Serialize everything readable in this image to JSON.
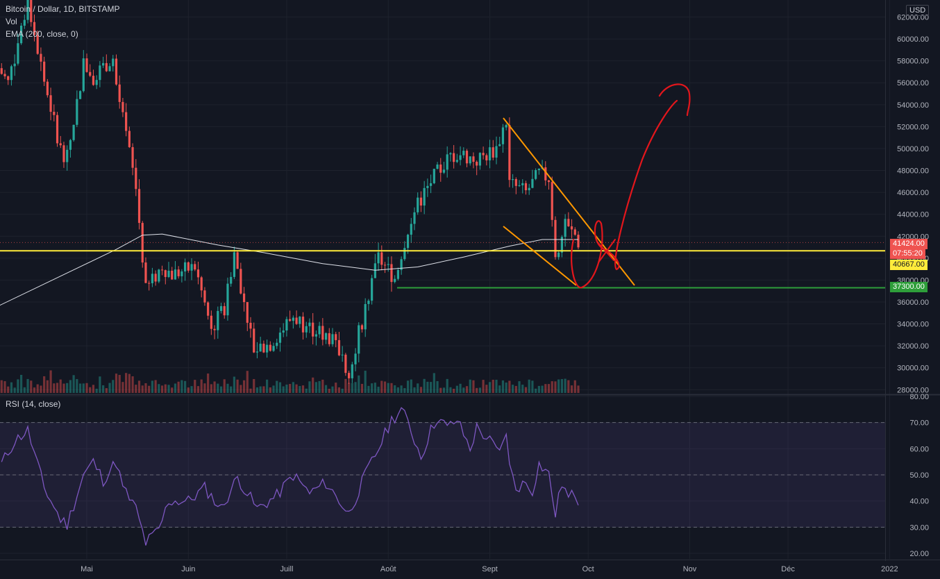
{
  "header": {
    "symbol_line": "Bitcoin / Dollar, 1D, BITSTAMP",
    "vol_label": "Vol",
    "ema_label": "EMA (200, close, 0)",
    "rsi_label": "RSI (14, close)",
    "currency": "USD"
  },
  "price_tags": {
    "last": "41424.00",
    "countdown": "07:55:20",
    "yellow_level": "40667.00",
    "green_level": "37300.00"
  },
  "colors": {
    "background": "#131722",
    "up": "#26a69a",
    "down": "#ef5350",
    "ema": "#e0e3eb",
    "rsi": "#7e57c2",
    "yellow_line": "#ffeb3b",
    "green_line": "#2e9e3a",
    "channel": "#ff9800",
    "drawing": "#e3161c"
  },
  "chart_data": [
    {
      "type": "candlestick",
      "title": "Bitcoin / Dollar, 1D, BITSTAMP",
      "ylabel": "USD",
      "x_ticks": [
        "Mai",
        "Juin",
        "Juill",
        "Août",
        "Sept",
        "Oct",
        "Nov",
        "Déc",
        "2022"
      ],
      "y_ticks": [
        "28000.00",
        "30000.00",
        "32000.00",
        "34000.00",
        "36000.00",
        "38000.00",
        "40000.00",
        "42000.00",
        "44000.00",
        "46000.00",
        "48000.00",
        "50000.00",
        "52000.00",
        "54000.00",
        "56000.00",
        "58000.00",
        "60000.00",
        "62000.00"
      ],
      "ylim": [
        27700,
        63300
      ],
      "close_path": [
        {
          "date": "2021-04-01",
          "close": 58700
        },
        {
          "date": "2021-04-07",
          "close": 56000
        },
        {
          "date": "2021-04-13",
          "close": 63400
        },
        {
          "date": "2021-04-18",
          "close": 56200
        },
        {
          "date": "2021-04-23",
          "close": 50000
        },
        {
          "date": "2021-04-25",
          "close": 49100
        },
        {
          "date": "2021-04-30",
          "close": 57700
        },
        {
          "date": "2021-05-03",
          "close": 56600
        },
        {
          "date": "2021-05-09",
          "close": 58300
        },
        {
          "date": "2021-05-10",
          "close": 55800
        },
        {
          "date": "2021-05-14",
          "close": 49600
        },
        {
          "date": "2021-05-16",
          "close": 46400
        },
        {
          "date": "2021-05-19",
          "close": 37000
        },
        {
          "date": "2021-05-24",
          "close": 39300
        },
        {
          "date": "2021-05-27",
          "close": 38500
        },
        {
          "date": "2021-06-03",
          "close": 39200
        },
        {
          "date": "2021-06-08",
          "close": 33500
        },
        {
          "date": "2021-06-12",
          "close": 35500
        },
        {
          "date": "2021-06-15",
          "close": 40500
        },
        {
          "date": "2021-06-21",
          "close": 31700
        },
        {
          "date": "2021-06-26",
          "close": 32200
        },
        {
          "date": "2021-07-03",
          "close": 34700
        },
        {
          "date": "2021-07-07",
          "close": 33800
        },
        {
          "date": "2021-07-14",
          "close": 32800
        },
        {
          "date": "2021-07-20",
          "close": 29800
        },
        {
          "date": "2021-07-25",
          "close": 35400
        },
        {
          "date": "2021-07-29",
          "close": 40000
        },
        {
          "date": "2021-08-03",
          "close": 38200
        },
        {
          "date": "2021-08-08",
          "close": 43800
        },
        {
          "date": "2021-08-14",
          "close": 47000
        },
        {
          "date": "2021-08-20",
          "close": 49300
        },
        {
          "date": "2021-08-23",
          "close": 49500
        },
        {
          "date": "2021-08-28",
          "close": 48900
        },
        {
          "date": "2021-09-03",
          "close": 50000
        },
        {
          "date": "2021-09-06",
          "close": 52700
        },
        {
          "date": "2021-09-07",
          "close": 46800
        },
        {
          "date": "2021-09-12",
          "close": 46000
        },
        {
          "date": "2021-09-16",
          "close": 47700
        },
        {
          "date": "2021-09-19",
          "close": 47300
        },
        {
          "date": "2021-09-21",
          "close": 40500
        },
        {
          "date": "2021-09-24",
          "close": 42800
        },
        {
          "date": "2021-09-27",
          "close": 42100
        },
        {
          "date": "2021-09-28",
          "close": 41424
        }
      ],
      "ema_200_path": [
        {
          "date": "2021-04-01",
          "value": 35200
        },
        {
          "date": "2021-05-10",
          "value": 40800
        },
        {
          "date": "2021-05-18",
          "value": 42100
        },
        {
          "date": "2021-05-24",
          "value": 42200
        },
        {
          "date": "2021-06-10",
          "value": 41200
        },
        {
          "date": "2021-06-24",
          "value": 40500
        },
        {
          "date": "2021-07-12",
          "value": 39500
        },
        {
          "date": "2021-07-28",
          "value": 38900
        },
        {
          "date": "2021-08-10",
          "value": 39200
        },
        {
          "date": "2021-08-24",
          "value": 40100
        },
        {
          "date": "2021-09-07",
          "value": 41100
        },
        {
          "date": "2021-09-17",
          "value": 41700
        },
        {
          "date": "2021-09-28",
          "value": 41700
        }
      ],
      "levels": [
        {
          "value": 40667,
          "color": "yellow"
        },
        {
          "value": 37300,
          "color": "green"
        }
      ]
    },
    {
      "type": "line",
      "title": "RSI (14, close)",
      "y_ticks": [
        "20.00",
        "30.00",
        "40.00",
        "50.00",
        "60.00",
        "70.00",
        "80.00"
      ],
      "ylim": [
        20,
        80
      ],
      "bands": [
        30,
        50,
        70
      ],
      "points": [
        {
          "date": "2021-04-01",
          "value": 60
        },
        {
          "date": "2021-04-04",
          "value": 52
        },
        {
          "date": "2021-04-09",
          "value": 63
        },
        {
          "date": "2021-04-13",
          "value": 67
        },
        {
          "date": "2021-04-18",
          "value": 45
        },
        {
          "date": "2021-04-23",
          "value": 33
        },
        {
          "date": "2021-04-25",
          "value": 31
        },
        {
          "date": "2021-04-30",
          "value": 50
        },
        {
          "date": "2021-05-03",
          "value": 55
        },
        {
          "date": "2021-05-06",
          "value": 48
        },
        {
          "date": "2021-05-10",
          "value": 55
        },
        {
          "date": "2021-05-12",
          "value": 45
        },
        {
          "date": "2021-05-16",
          "value": 37
        },
        {
          "date": "2021-05-19",
          "value": 24
        },
        {
          "date": "2021-05-23",
          "value": 29
        },
        {
          "date": "2021-05-26",
          "value": 40
        },
        {
          "date": "2021-06-01",
          "value": 40
        },
        {
          "date": "2021-06-06",
          "value": 45
        },
        {
          "date": "2021-06-11",
          "value": 37
        },
        {
          "date": "2021-06-16",
          "value": 49
        },
        {
          "date": "2021-06-22",
          "value": 37
        },
        {
          "date": "2021-06-28",
          "value": 42
        },
        {
          "date": "2021-07-03",
          "value": 50
        },
        {
          "date": "2021-07-08",
          "value": 43
        },
        {
          "date": "2021-07-13",
          "value": 47
        },
        {
          "date": "2021-07-20",
          "value": 35
        },
        {
          "date": "2021-07-25",
          "value": 50
        },
        {
          "date": "2021-07-29",
          "value": 60
        },
        {
          "date": "2021-08-02",
          "value": 71
        },
        {
          "date": "2021-08-05",
          "value": 75
        },
        {
          "date": "2021-08-07",
          "value": 70
        },
        {
          "date": "2021-08-11",
          "value": 57
        },
        {
          "date": "2021-08-14",
          "value": 67
        },
        {
          "date": "2021-08-16",
          "value": 72
        },
        {
          "date": "2021-08-19",
          "value": 68
        },
        {
          "date": "2021-08-22",
          "value": 71
        },
        {
          "date": "2021-08-26",
          "value": 60
        },
        {
          "date": "2021-08-28",
          "value": 68
        },
        {
          "date": "2021-09-01",
          "value": 63
        },
        {
          "date": "2021-09-04",
          "value": 58
        },
        {
          "date": "2021-09-06",
          "value": 67
        },
        {
          "date": "2021-09-07",
          "value": 53
        },
        {
          "date": "2021-09-09",
          "value": 45
        },
        {
          "date": "2021-09-12",
          "value": 47
        },
        {
          "date": "2021-09-14",
          "value": 44
        },
        {
          "date": "2021-09-16",
          "value": 54
        },
        {
          "date": "2021-09-18",
          "value": 52
        },
        {
          "date": "2021-09-19",
          "value": 50
        },
        {
          "date": "2021-09-21",
          "value": 35
        },
        {
          "date": "2021-09-23",
          "value": 47
        },
        {
          "date": "2021-09-25",
          "value": 41
        },
        {
          "date": "2021-09-27",
          "value": 43
        },
        {
          "date": "2021-09-28",
          "value": 40
        }
      ]
    }
  ]
}
